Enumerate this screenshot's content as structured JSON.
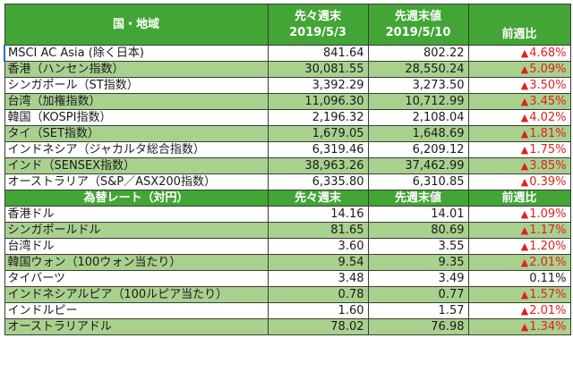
{
  "colors": {
    "header_bg": "#43a535",
    "header_text": "#ffffff",
    "alt_row_bg": "#a9d18e",
    "row_bg": "#ffffff",
    "negative": "#e02020"
  },
  "indices_table": {
    "header": {
      "name": "国・地域",
      "col1_line1": "先々週末",
      "col1_line2": "2019/5/3",
      "col2_line1": "先週末値",
      "col2_line2": "2019/5/10",
      "col3": "前週比"
    },
    "rows": [
      {
        "name": "MSCI AC Asia (除く日本)",
        "prev2": "841.64",
        "prev1": "802.22",
        "sign": "▲",
        "change": "4.68%"
      },
      {
        "name": "香港（ハンセン指数）",
        "prev2": "30,081.55",
        "prev1": "28,550.24",
        "sign": "▲",
        "change": "5.09%"
      },
      {
        "name": "シンガポール（ST指数）",
        "prev2": "3,392.29",
        "prev1": "3,273.50",
        "sign": "▲",
        "change": "3.50%"
      },
      {
        "name": "台湾（加権指数）",
        "prev2": "11,096.30",
        "prev1": "10,712.99",
        "sign": "▲",
        "change": "3.45%"
      },
      {
        "name": "韓国（KOSPI指数）",
        "prev2": "2,196.32",
        "prev1": "2,108.04",
        "sign": "▲",
        "change": "4.02%"
      },
      {
        "name": "タイ（SET指数）",
        "prev2": "1,679.05",
        "prev1": "1,648.69",
        "sign": "▲",
        "change": "1.81%"
      },
      {
        "name": "インドネシア（ジャカルタ総合指数）",
        "prev2": "6,319.46",
        "prev1": "6,209.12",
        "sign": "▲",
        "change": "1.75%"
      },
      {
        "name": "インド（SENSEX指数）",
        "prev2": "38,963.26",
        "prev1": "37,462.99",
        "sign": "▲",
        "change": "3.85%"
      },
      {
        "name": "オーストラリア（S&P／ASX200指数）",
        "prev2": "6,335.80",
        "prev1": "6,310.85",
        "sign": "▲",
        "change": "0.39%"
      }
    ]
  },
  "fx_table": {
    "header": {
      "name": "為替レート（対円）",
      "col1": "先々週末",
      "col2": "先週末値",
      "col3": "前週比"
    },
    "rows": [
      {
        "name": "香港ドル",
        "prev2": "14.16",
        "prev1": "14.01",
        "sign": "▲",
        "change": "1.09%"
      },
      {
        "name": "シンガポールドル",
        "prev2": "81.65",
        "prev1": "80.69",
        "sign": "▲",
        "change": "1.17%"
      },
      {
        "name": "台湾ドル",
        "prev2": "3.60",
        "prev1": "3.55",
        "sign": "▲",
        "change": "1.20%"
      },
      {
        "name": "韓国ウォン（100ウォン当たり）",
        "prev2": "9.54",
        "prev1": "9.35",
        "sign": "▲",
        "change": "2.01%"
      },
      {
        "name": "タイバーツ",
        "prev2": "3.48",
        "prev1": "3.49",
        "sign": "",
        "change": "0.11%"
      },
      {
        "name": "インドネシアルピア（100ルピア当たり）",
        "prev2": "0.78",
        "prev1": "0.77",
        "sign": "▲",
        "change": "1.57%"
      },
      {
        "name": "インドルピー",
        "prev2": "1.60",
        "prev1": "1.57",
        "sign": "▲",
        "change": "2.01%"
      },
      {
        "name": "オーストラリアドル",
        "prev2": "78.02",
        "prev1": "76.98",
        "sign": "▲",
        "change": "1.34%"
      }
    ]
  }
}
